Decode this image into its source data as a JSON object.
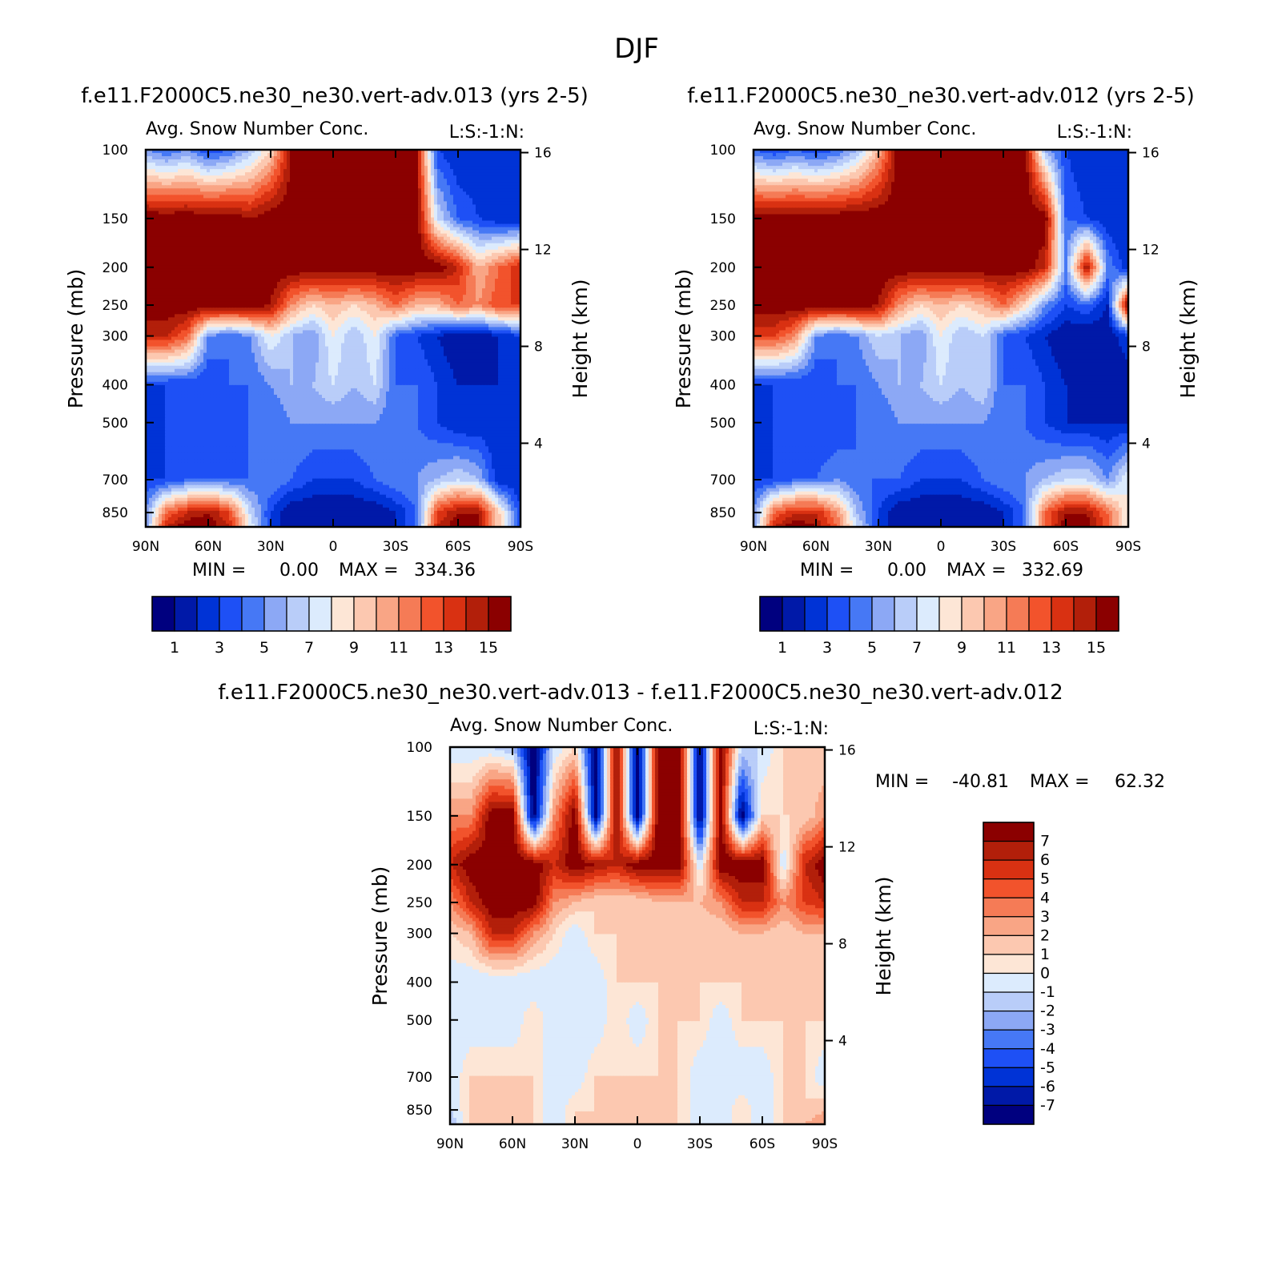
{
  "page_title": "DJF",
  "colors": {
    "absolute_scale": [
      "#00007f",
      "#0019a8",
      "#0033d6",
      "#1e50f5",
      "#4678f5",
      "#8ca8f5",
      "#b9cdf9",
      "#dcebfd",
      "#fde6d6",
      "#fcc8b0",
      "#f9a585",
      "#f57b56",
      "#f2532c",
      "#d93112",
      "#b21f0a",
      "#8b0000"
    ],
    "difference_scale": [
      "#00007f",
      "#0019a8",
      "#0033d6",
      "#1e50f5",
      "#4678f5",
      "#8ca8f5",
      "#b9cdf9",
      "#dcebfd",
      "#fde6d6",
      "#fcc8b0",
      "#f9a585",
      "#f57b56",
      "#f2532c",
      "#d93112",
      "#b21f0a",
      "#8b0000"
    ]
  },
  "panels": [
    {
      "case_title": "f.e11.F2000C5.ne30_ne30.vert-adv.013 (yrs 2-5)",
      "variable": "Avg. Snow Number Conc.",
      "tag": "L:S:-1:N:",
      "ylabel": "Pressure (mb)",
      "ylabel_right": "Height (km)",
      "min_label": "MIN =",
      "min_value": "0.00",
      "max_label": "MAX =",
      "max_value": "334.36",
      "colorbar_labels": [
        "1",
        "3",
        "5",
        "7",
        "9",
        "11",
        "13",
        "15"
      ]
    },
    {
      "case_title": "f.e11.F2000C5.ne30_ne30.vert-adv.012 (yrs 2-5)",
      "variable": "Avg. Snow Number Conc.",
      "tag": "L:S:-1:N:",
      "ylabel": "Pressure (mb)",
      "ylabel_right": "Height (km)",
      "min_label": "MIN =",
      "min_value": "0.00",
      "max_label": "MAX =",
      "max_value": "332.69",
      "colorbar_labels": [
        "1",
        "3",
        "5",
        "7",
        "9",
        "11",
        "13",
        "15"
      ]
    },
    {
      "case_title": "f.e11.F2000C5.ne30_ne30.vert-adv.013 - f.e11.F2000C5.ne30_ne30.vert-adv.012",
      "variable": "Avg. Snow Number Conc.",
      "tag": "L:S:-1:N:",
      "ylabel": "Pressure (mb)",
      "ylabel_right": "Height (km)",
      "min_label": "MIN =",
      "min_value": "-40.81",
      "max_label": "MAX =",
      "max_value": "62.32",
      "colorbar_labels": [
        "7",
        "6",
        "5",
        "4",
        "3",
        "2",
        "1",
        "0",
        "-1",
        "-2",
        "-3",
        "-4",
        "-5",
        "-6",
        "-7"
      ]
    }
  ],
  "chart_data": [
    {
      "type": "heatmap",
      "title": "f.e11.F2000C5.ne30_ne30.vert-adv.013 (yrs 2-5)",
      "subtitle": "Avg. Snow Number Conc.",
      "xlabel": "",
      "ylabel": "Pressure (mb)",
      "ylabel_right": "Height (km)",
      "x_ticks": [
        "90N",
        "60N",
        "30N",
        "0",
        "30S",
        "60S",
        "90S"
      ],
      "x_tick_values": [
        90,
        60,
        30,
        0,
        -30,
        -60,
        -90
      ],
      "y_ticks": [
        "100",
        "150",
        "200",
        "250",
        "300",
        "400",
        "500",
        "700",
        "850"
      ],
      "y_tick_values": [
        100,
        150,
        200,
        250,
        300,
        400,
        500,
        700,
        850
      ],
      "y_scale": "log",
      "ylim": [
        100,
        925
      ],
      "y2_ticks": [
        "16",
        "12",
        "8",
        "4"
      ],
      "y2_tick_values": [
        16,
        12,
        8,
        4
      ],
      "levels": [
        1,
        2,
        3,
        4,
        5,
        6,
        7,
        8,
        9,
        10,
        11,
        12,
        13,
        14,
        15
      ],
      "min": 0.0,
      "max": 334.36,
      "lat_nodes": [
        90,
        80,
        70,
        60,
        50,
        40,
        30,
        20,
        10,
        0,
        -10,
        -20,
        -30,
        -40,
        -50,
        -60,
        -70,
        -80,
        -90
      ],
      "p_nodes": [
        100,
        150,
        200,
        250,
        300,
        400,
        500,
        700,
        850,
        925
      ],
      "values": [
        [
          5,
          4,
          5,
          3,
          4,
          6,
          9,
          15,
          16,
          16,
          16,
          16,
          16,
          15,
          3,
          2,
          2,
          2,
          2
        ],
        [
          16,
          16,
          16,
          16,
          16,
          15,
          16,
          16,
          16,
          16,
          16,
          16,
          16,
          16,
          7,
          4,
          3,
          2,
          2
        ],
        [
          16,
          16,
          16,
          16,
          16,
          16,
          16,
          16,
          16,
          16,
          16,
          16,
          16,
          16,
          16,
          14,
          10,
          12,
          14
        ],
        [
          16,
          16,
          16,
          16,
          16,
          16,
          15,
          11,
          9,
          10,
          9,
          10,
          12,
          10,
          10,
          12,
          11,
          13,
          13
        ],
        [
          14,
          14,
          12,
          5,
          4,
          5,
          8,
          6,
          5,
          8,
          6,
          8,
          4,
          3,
          2,
          1,
          1,
          2,
          3
        ],
        [
          3,
          3,
          3,
          3,
          4,
          4,
          5,
          6,
          6,
          7,
          6,
          7,
          4,
          4,
          3,
          2,
          2,
          2,
          2
        ],
        [
          2,
          3,
          3,
          3,
          3,
          4,
          4,
          5,
          5,
          5,
          5,
          5,
          4,
          4,
          3,
          2,
          2,
          2,
          2
        ],
        [
          3,
          3,
          4,
          4,
          4,
          4,
          5,
          4,
          3,
          3,
          3,
          4,
          5,
          5,
          6,
          7,
          6,
          2,
          2
        ],
        [
          5,
          12,
          14,
          15,
          13,
          7,
          3,
          1,
          1,
          1,
          1,
          1,
          2,
          4,
          13,
          15,
          15,
          9,
          3
        ],
        [
          5,
          14,
          16,
          16,
          14,
          8,
          3,
          1,
          1,
          1,
          1,
          1,
          2,
          4,
          14,
          16,
          15,
          9,
          3
        ]
      ]
    },
    {
      "type": "heatmap",
      "title": "f.e11.F2000C5.ne30_ne30.vert-adv.012 (yrs 2-5)",
      "subtitle": "Avg. Snow Number Conc.",
      "xlabel": "",
      "ylabel": "Pressure (mb)",
      "ylabel_right": "Height (km)",
      "x_ticks": [
        "90N",
        "60N",
        "30N",
        "0",
        "30S",
        "60S",
        "90S"
      ],
      "x_tick_values": [
        90,
        60,
        30,
        0,
        -30,
        -60,
        -90
      ],
      "y_ticks": [
        "100",
        "150",
        "200",
        "250",
        "300",
        "400",
        "500",
        "700",
        "850"
      ],
      "y_tick_values": [
        100,
        150,
        200,
        250,
        300,
        400,
        500,
        700,
        850
      ],
      "y_scale": "log",
      "ylim": [
        100,
        925
      ],
      "y2_ticks": [
        "16",
        "12",
        "8",
        "4"
      ],
      "y2_tick_values": [
        16,
        12,
        8,
        4
      ],
      "levels": [
        1,
        2,
        3,
        4,
        5,
        6,
        7,
        8,
        9,
        10,
        11,
        12,
        13,
        14,
        15
      ],
      "min": 0.0,
      "max": 332.69,
      "lat_nodes": [
        90,
        80,
        70,
        60,
        50,
        40,
        30,
        20,
        10,
        0,
        -10,
        -20,
        -30,
        -40,
        -50,
        -60,
        -70,
        -80,
        -90
      ],
      "p_nodes": [
        100,
        150,
        200,
        250,
        300,
        400,
        500,
        700,
        850,
        925
      ],
      "values": [
        [
          4,
          3,
          4,
          3,
          4,
          6,
          10,
          16,
          16,
          16,
          16,
          16,
          16,
          16,
          6,
          3,
          2,
          2,
          2
        ],
        [
          16,
          16,
          16,
          16,
          16,
          16,
          16,
          16,
          16,
          16,
          16,
          16,
          16,
          16,
          16,
          4,
          3,
          2,
          2
        ],
        [
          16,
          16,
          16,
          16,
          16,
          16,
          16,
          16,
          16,
          16,
          16,
          16,
          16,
          16,
          14,
          5,
          15,
          5,
          2
        ],
        [
          16,
          16,
          16,
          16,
          16,
          16,
          15,
          11,
          9,
          10,
          9,
          10,
          12,
          9,
          5,
          3,
          4,
          2,
          16
        ],
        [
          13,
          13,
          11,
          5,
          4,
          5,
          7,
          6,
          5,
          8,
          6,
          7,
          4,
          3,
          2,
          1,
          1,
          1,
          3
        ],
        [
          3,
          3,
          3,
          3,
          4,
          4,
          5,
          6,
          6,
          7,
          6,
          7,
          4,
          4,
          3,
          2,
          1,
          1,
          1
        ],
        [
          2,
          3,
          3,
          3,
          3,
          4,
          4,
          5,
          5,
          5,
          5,
          5,
          4,
          4,
          3,
          2,
          2,
          2,
          2
        ],
        [
          3,
          3,
          4,
          4,
          5,
          4,
          4,
          4,
          3,
          3,
          3,
          4,
          5,
          5,
          6,
          7,
          7,
          5,
          8
        ],
        [
          5,
          12,
          14,
          14,
          11,
          6,
          3,
          1,
          1,
          1,
          1,
          1,
          2,
          4,
          12,
          15,
          15,
          12,
          8
        ],
        [
          5,
          14,
          16,
          15,
          12,
          7,
          3,
          1,
          1,
          1,
          1,
          1,
          2,
          4,
          12,
          16,
          16,
          12,
          8
        ]
      ]
    },
    {
      "type": "heatmap",
      "title": "f.e11.F2000C5.ne30_ne30.vert-adv.013 - f.e11.F2000C5.ne30_ne30.vert-adv.012",
      "subtitle": "Avg. Snow Number Conc.",
      "xlabel": "",
      "ylabel": "Pressure (mb)",
      "ylabel_right": "Height (km)",
      "x_ticks": [
        "90N",
        "60N",
        "30N",
        "0",
        "30S",
        "60S",
        "90S"
      ],
      "x_tick_values": [
        90,
        60,
        30,
        0,
        -30,
        -60,
        -90
      ],
      "y_ticks": [
        "100",
        "150",
        "200",
        "250",
        "300",
        "400",
        "500",
        "700",
        "850"
      ],
      "y_tick_values": [
        100,
        150,
        200,
        250,
        300,
        400,
        500,
        700,
        850
      ],
      "y_scale": "log",
      "ylim": [
        100,
        925
      ],
      "y2_ticks": [
        "16",
        "12",
        "8",
        "4"
      ],
      "y2_tick_values": [
        16,
        12,
        8,
        4
      ],
      "levels": [
        -7,
        -6,
        -5,
        -4,
        -3,
        -2,
        -1,
        0,
        1,
        2,
        3,
        4,
        5,
        6,
        7
      ],
      "min": -40.81,
      "max": 62.32,
      "lat_nodes": [
        90,
        80,
        70,
        60,
        50,
        40,
        30,
        20,
        10,
        0,
        -10,
        -20,
        -30,
        -40,
        -50,
        -60,
        -70,
        -80,
        -90
      ],
      "p_nodes": [
        100,
        150,
        200,
        250,
        300,
        400,
        500,
        700,
        850,
        925
      ],
      "values": [
        [
          -1,
          -1,
          -1,
          -2,
          -8,
          -1,
          1,
          -8,
          8,
          -8,
          8,
          8,
          -8,
          8,
          -1,
          -1,
          1,
          1,
          1
        ],
        [
          3,
          3,
          8,
          8,
          -8,
          3,
          8,
          -8,
          8,
          -8,
          8,
          8,
          -8,
          8,
          -8,
          1,
          1,
          1,
          3
        ],
        [
          6,
          8,
          8,
          8,
          8,
          6,
          8,
          7,
          6,
          8,
          8,
          8,
          -1,
          8,
          8,
          8,
          -1,
          6,
          8
        ],
        [
          3,
          6,
          8,
          8,
          8,
          3,
          2,
          1,
          1,
          1,
          2,
          2,
          2,
          3,
          6,
          6,
          3,
          5,
          6
        ],
        [
          1,
          2,
          6,
          6,
          3,
          1,
          -1,
          1,
          1,
          1,
          1,
          1,
          1,
          1,
          2,
          2,
          1,
          2,
          2
        ],
        [
          -1,
          -1,
          -1,
          -1,
          -1,
          -1,
          -1,
          -1,
          1,
          1,
          1,
          1,
          1,
          1,
          1,
          1,
          1,
          1,
          1
        ],
        [
          -1,
          -1,
          -1,
          -1,
          1,
          -1,
          -1,
          -1,
          1,
          -1,
          1,
          1,
          1,
          -1,
          1,
          1,
          1,
          1,
          1
        ],
        [
          -1,
          1,
          1,
          1,
          1,
          -1,
          -1,
          1,
          1,
          1,
          1,
          1,
          -1,
          -1,
          -1,
          -1,
          1,
          1,
          -1
        ],
        [
          -1,
          1,
          1,
          1,
          1,
          -1,
          1,
          1,
          1,
          1,
          1,
          1,
          -1,
          -1,
          1,
          -1,
          1,
          1,
          2
        ],
        [
          -2,
          1,
          1,
          1,
          1,
          -1,
          1,
          1,
          1,
          1,
          1,
          1,
          -1,
          -1,
          1,
          -1,
          1,
          2,
          3
        ]
      ]
    }
  ]
}
